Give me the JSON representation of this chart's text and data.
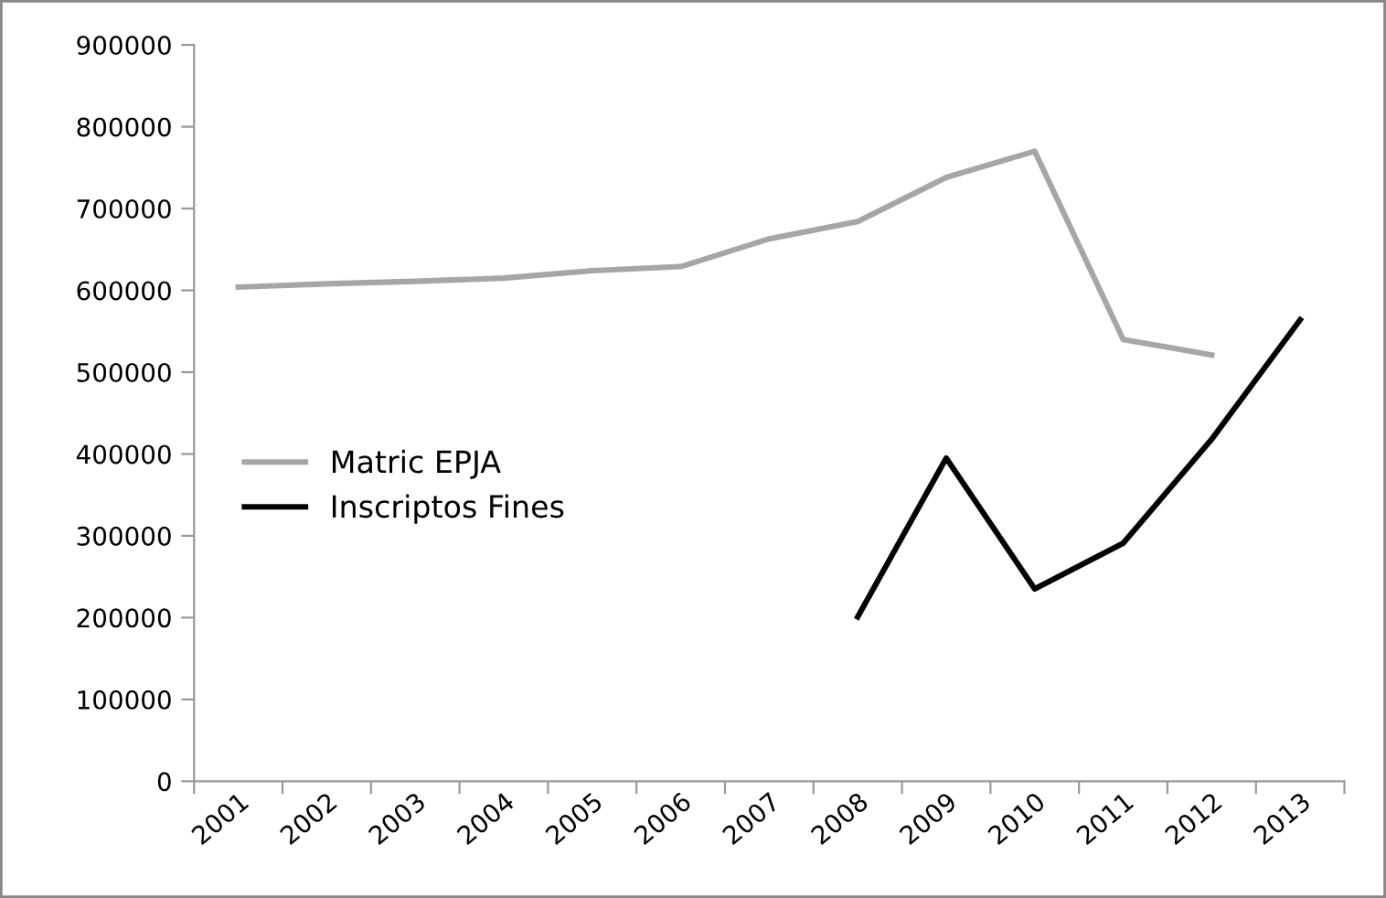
{
  "chart_data": {
    "type": "line",
    "categories": [
      "2001",
      "2002",
      "2003",
      "2004",
      "2005",
      "2006",
      "2007",
      "2008",
      "2009",
      "2010",
      "2011",
      "2012",
      "2013"
    ],
    "series": [
      {
        "name": "Matric EPJA",
        "color": "#a6a6a6",
        "values": [
          604000,
          608000,
          611000,
          615000,
          624000,
          629000,
          663000,
          684000,
          738000,
          770000,
          540000,
          521000,
          null
        ]
      },
      {
        "name": "Inscriptos Fines",
        "color": "#000000",
        "values": [
          null,
          null,
          null,
          null,
          null,
          null,
          null,
          201000,
          395000,
          235000,
          291000,
          418000,
          564000
        ]
      }
    ],
    "ylim": [
      0,
      900000
    ],
    "yticks": [
      0,
      100000,
      200000,
      300000,
      400000,
      500000,
      600000,
      700000,
      800000,
      900000
    ],
    "grid": false,
    "legend": "left",
    "marker": "none",
    "line_style": "solid"
  }
}
